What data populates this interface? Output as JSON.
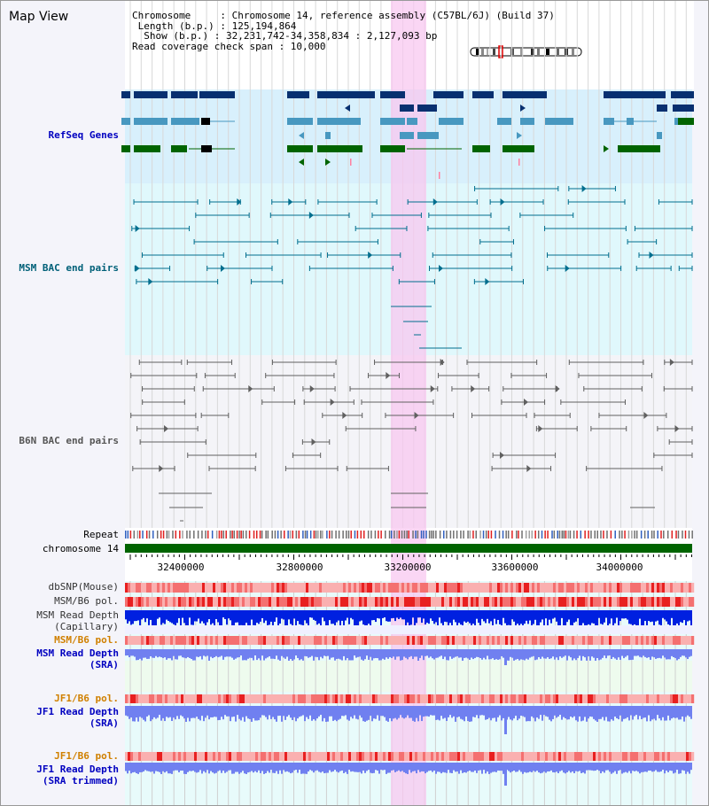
{
  "header": {
    "title": "Map View",
    "info_lines": [
      "Chromosome     : Chromosome 14, reference assembly (C57BL/6J) (Build 37)",
      " Length (b.p.) : 125,194,864",
      "  Show (b.p.) : 32,231,742-34,358,834 : 2,127,093 bp",
      "Read coverage check span : 10,000"
    ]
  },
  "tracks": {
    "refseq": "RefSeq Genes",
    "msm_bac": "MSM BAC end pairs",
    "b6n_bac": "B6N BAC end pairs",
    "repeat": "Repeat",
    "chromosome": "chromosome 14",
    "dbsnp": "dbSNP(Mouse)",
    "msm_b6_pol_1": "MSM/B6 pol.",
    "msm_read_depth_cap_1": "MSM Read Depth",
    "msm_read_depth_cap_2": "(Capillary)",
    "msm_b6_pol_2": "MSM/B6 pol.",
    "msm_read_depth_sra_1": "MSM Read Depth",
    "msm_read_depth_sra_2": "(SRA)",
    "jf1_b6_pol_1": "JF1/B6 pol.",
    "jf1_read_depth_sra_1": "JF1 Read Depth",
    "jf1_read_depth_sra_2": "(SRA)",
    "jf1_b6_pol_2": "JF1/B6 pol.",
    "jf1_read_depth_trim_1": "JF1 Read Depth",
    "jf1_read_depth_trim_2": "(SRA trimmed)"
  },
  "axis": {
    "ticks": [
      "32400000",
      "32800000",
      "33200000",
      "33600000",
      "34000000"
    ]
  },
  "colors": {
    "refseq_label": "#0000c0",
    "msm_label": "#006078",
    "b6n_label": "#555555",
    "pol_label": "#d08000",
    "depth_label": "#0000c0",
    "highlight": "#f8c8f0",
    "refseq_bg": "#d8f0fc",
    "msm_bg": "#e0f8fc",
    "b6n_bg": "#f4f4f8",
    "gene_dark": "#083070",
    "gene_mid": "#4898c0",
    "gene_green": "#006400",
    "bac_teal": "#006e8e",
    "bac_gray": "#606060",
    "chrom_green": "#006400",
    "depth_capillary": "#0020e0",
    "depth_sra": "#7080f0"
  }
}
